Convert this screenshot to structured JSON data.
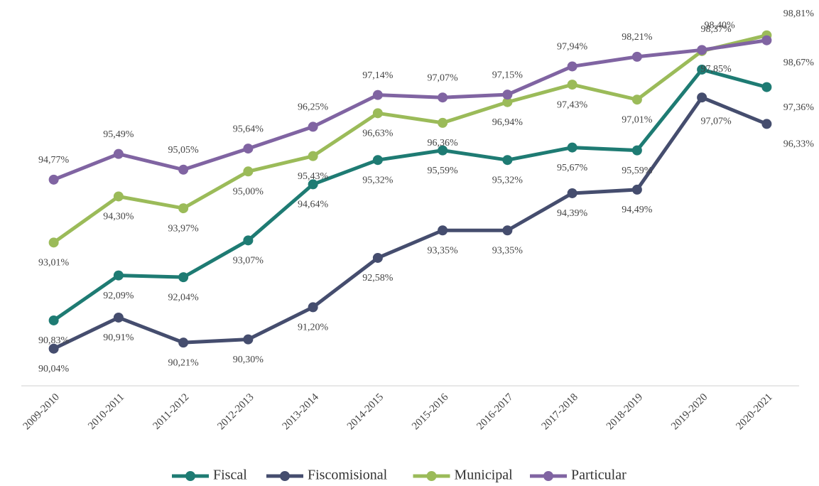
{
  "chart_data": {
    "type": "line",
    "categories": [
      "2009-2010",
      "2010-2011",
      "2011-2012",
      "2012-2013",
      "2013-2014",
      "2014-2015",
      "2015-2016",
      "2016-2017",
      "2017-2018",
      "2018-2019",
      "2019-2020",
      "2020-2021"
    ],
    "ylim": [
      89,
      99.5
    ],
    "series": [
      {
        "name": "Fiscal",
        "color": "#1e7b73",
        "values": [
          90.83,
          92.09,
          92.04,
          93.07,
          94.64,
          95.32,
          95.59,
          95.32,
          95.67,
          95.59,
          97.85,
          97.36
        ],
        "value_labels": [
          "90,83%",
          "92,09%",
          "92,04%",
          "93,07%",
          "94,64%",
          "95,32%",
          "95,59%",
          "95,32%",
          "95,67%",
          "95,59%",
          "97,85%",
          "97,36%"
        ]
      },
      {
        "name": "Fiscomisional",
        "color": "#454d6e",
        "values": [
          90.04,
          90.91,
          90.21,
          90.3,
          91.2,
          92.58,
          93.35,
          93.35,
          94.39,
          94.49,
          97.07,
          96.33
        ],
        "value_labels": [
          "90,04%",
          "90,91%",
          "90,21%",
          "90,30%",
          "91,20%",
          "92,58%",
          "93,35%",
          "93,35%",
          "94,39%",
          "94,49%",
          "97,07%",
          "96,33%"
        ]
      },
      {
        "name": "Municipal",
        "color": "#9bbb59",
        "values": [
          93.01,
          94.3,
          93.97,
          95.0,
          95.43,
          96.63,
          96.36,
          96.94,
          97.43,
          97.01,
          98.37,
          98.81
        ],
        "value_labels": [
          "93,01%",
          "94,30%",
          "93,97%",
          "95,00%",
          "95,43%",
          "96,63%",
          "96,36%",
          "96,94%",
          "97,43%",
          "97,01%",
          "98,37%",
          "98,81%"
        ]
      },
      {
        "name": "Particular",
        "color": "#8064a2",
        "values": [
          94.77,
          95.49,
          95.05,
          95.64,
          96.25,
          97.14,
          97.07,
          97.15,
          97.94,
          98.21,
          98.4,
          98.67
        ],
        "value_labels": [
          "94,77%",
          "95,49%",
          "95,05%",
          "95,64%",
          "96,25%",
          "97,14%",
          "97,07%",
          "97,15%",
          "97,94%",
          "98,21%",
          "98,40%",
          "98,67%"
        ]
      }
    ]
  }
}
